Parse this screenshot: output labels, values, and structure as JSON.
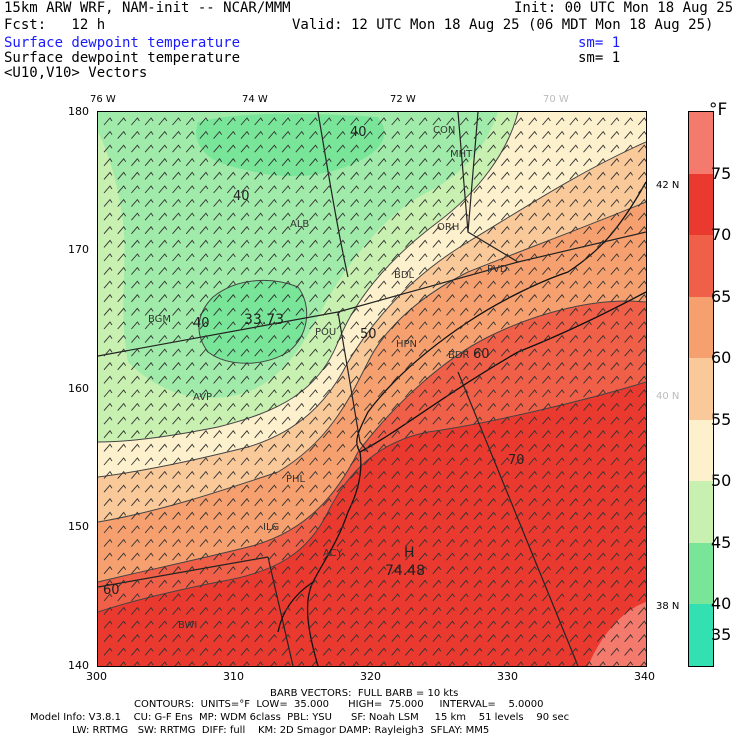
{
  "header": {
    "title": "15km ARW WRF, NAM-init -- NCAR/MMM",
    "init": "Init: 00 UTC Mon 18 Aug 25",
    "fcst": "Fcst:   12 h",
    "valid": "Valid: 12 UTC Mon 18 Aug 25 (06 MDT Mon 18 Aug 25)",
    "field1": "Surface dewpoint temperature",
    "field1_sm": "sm= 1",
    "field2": "Surface dewpoint temperature",
    "field2_sm": "sm= 1",
    "field3": "<U10,V10> Vectors"
  },
  "axes": {
    "y_ticks": [
      "180",
      "170",
      "160",
      "150",
      "140"
    ],
    "x_ticks": [
      "300",
      "310",
      "320",
      "330",
      "340"
    ],
    "lon_labels": [
      "76 W",
      "74 W",
      "72 W",
      "70 W"
    ],
    "lat_labels": [
      "42 N",
      "40 N",
      "38 N"
    ]
  },
  "legend": {
    "unit": "°F",
    "labels": [
      "75",
      "70",
      "65",
      "60",
      "55",
      "50",
      "45",
      "40",
      "35"
    ],
    "colors": [
      "#f47a6d",
      "#ea3a30",
      "#f05f48",
      "#f6a070",
      "#f9c99a",
      "#fdf0cc",
      "#c8f0b0",
      "#78e598",
      "#33e0b2"
    ]
  },
  "map": {
    "contour_labels": [
      "40",
      "40",
      "40",
      "33.73",
      "50",
      "60",
      "70",
      "60",
      "74.48"
    ],
    "high_marker": "H",
    "station_labels": [
      "CON",
      "MHT",
      "ORH",
      "BDL",
      "PVD",
      "ALB",
      "BGM",
      "AVP",
      "POU",
      "HPN",
      "PHL",
      "ACY",
      "BWI",
      "ILG",
      "BDR"
    ]
  },
  "footer": {
    "barb": "BARB VECTORS:  FULL BARB = 10 kts",
    "contours": "CONTOURS:  UNITS=°F  LOW=  35.000      HIGH=  75.000     INTERVAL=    5.0000",
    "model1": "Model Info: V3.8.1    CU: G-F Ens  MP: WDM 6class  PBL: YSU      SF: Noah LSM     15 km    51 levels    90 sec",
    "model2": "LW: RRTMG   SW: RRTMG  DIFF: full    KM: 2D Smagor DAMP: Rayleigh3  SFLAY: MM5"
  }
}
